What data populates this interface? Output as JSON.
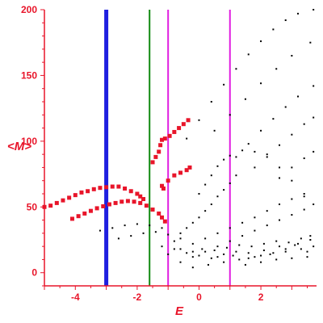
{
  "colors": {
    "axis": "#e8152a",
    "black_points": "#000000",
    "red_points": "#e8152a",
    "line_blue": "#1f1fe0",
    "line_green": "#128a12",
    "line_magenta": "#e01ee0"
  },
  "chart_data": {
    "type": "scatter",
    "xlabel": "E",
    "ylabel": "<M>",
    "xlim": [
      -5.0,
      3.8
    ],
    "ylim": [
      -10,
      200
    ],
    "xticks": [
      -4,
      -2,
      0,
      2
    ],
    "xtick_labels": [
      "-4",
      "-2",
      "0",
      "2"
    ],
    "yticks": [
      0,
      50,
      100,
      150,
      200
    ],
    "ytick_labels": [
      "0",
      "50",
      "100",
      "150",
      "200"
    ],
    "grid": false,
    "vertical_lines": [
      {
        "x": -3.0,
        "color": "#1f1fe0",
        "width": "thick"
      },
      {
        "x": -1.6,
        "color": "#128a12",
        "width": "normal"
      },
      {
        "x": -1.0,
        "color": "#e01ee0",
        "width": "normal"
      },
      {
        "x": 1.0,
        "color": "#e01ee0",
        "width": "normal"
      }
    ],
    "series": [
      {
        "color": "#e8152a",
        "marker": "large",
        "points": [
          [
            -5.0,
            50
          ],
          [
            -4.8,
            51
          ],
          [
            -4.6,
            53
          ],
          [
            -4.4,
            55
          ],
          [
            -4.2,
            57
          ],
          [
            -4.0,
            59
          ],
          [
            -3.8,
            61
          ],
          [
            -3.6,
            62
          ],
          [
            -3.4,
            63.5
          ],
          [
            -3.2,
            64.5
          ],
          [
            -3.0,
            65
          ],
          [
            -2.8,
            65.5
          ],
          [
            -2.6,
            65.5
          ],
          [
            -2.4,
            64
          ],
          [
            -2.2,
            62
          ],
          [
            -2.0,
            60
          ],
          [
            -1.9,
            58
          ],
          [
            -1.8,
            56
          ]
        ]
      },
      {
        "color": "#e8152a",
        "marker": "large",
        "points": [
          [
            -4.1,
            41
          ],
          [
            -3.9,
            43
          ],
          [
            -3.7,
            45
          ],
          [
            -3.5,
            47
          ],
          [
            -3.3,
            49
          ],
          [
            -3.1,
            50.5
          ],
          [
            -2.9,
            52
          ],
          [
            -2.7,
            53
          ],
          [
            -2.5,
            54
          ],
          [
            -2.3,
            54.5
          ],
          [
            -2.1,
            54
          ],
          [
            -1.9,
            53
          ],
          [
            -1.7,
            51
          ],
          [
            -1.5,
            48
          ],
          [
            -1.3,
            45
          ],
          [
            -1.2,
            42
          ],
          [
            -1.1,
            39
          ]
        ]
      },
      {
        "color": "#e8152a",
        "marker": "large",
        "points": [
          [
            -1.5,
            84
          ],
          [
            -1.4,
            88
          ],
          [
            -1.3,
            92
          ],
          [
            -1.25,
            97
          ],
          [
            -1.2,
            101
          ],
          [
            -1.1,
            102
          ],
          [
            -0.95,
            104
          ],
          [
            -0.8,
            107
          ],
          [
            -0.65,
            110
          ],
          [
            -0.5,
            113
          ],
          [
            -0.35,
            116
          ],
          [
            -1.2,
            66
          ],
          [
            -1.15,
            64
          ],
          [
            -1.0,
            70
          ],
          [
            -0.8,
            74
          ],
          [
            -0.6,
            76
          ],
          [
            -0.4,
            78
          ],
          [
            -0.3,
            80
          ]
        ]
      },
      {
        "color": "#000000",
        "marker": "small",
        "points": [
          [
            -0.4,
            102
          ],
          [
            0.0,
            116
          ],
          [
            0.4,
            130
          ],
          [
            0.8,
            143
          ],
          [
            1.2,
            155
          ],
          [
            1.6,
            166
          ],
          [
            2.0,
            176
          ],
          [
            2.4,
            185
          ],
          [
            2.8,
            192
          ],
          [
            3.2,
            197
          ],
          [
            3.7,
            200
          ],
          [
            0.5,
            108
          ],
          [
            1.0,
            120
          ],
          [
            1.5,
            132
          ],
          [
            2.0,
            144
          ],
          [
            2.5,
            155
          ],
          [
            3.0,
            165
          ],
          [
            3.6,
            175
          ],
          [
            1.2,
            88
          ],
          [
            1.6,
            98
          ],
          [
            2.0,
            108
          ],
          [
            2.4,
            117
          ],
          [
            2.8,
            126
          ],
          [
            3.2,
            134
          ],
          [
            3.7,
            142
          ],
          [
            1.8,
            80
          ],
          [
            2.2,
            88
          ],
          [
            2.6,
            97
          ],
          [
            3.0,
            105
          ],
          [
            3.4,
            113
          ],
          [
            3.7,
            118
          ],
          [
            2.6,
            72
          ],
          [
            3.0,
            80
          ],
          [
            3.4,
            87
          ],
          [
            3.7,
            92
          ],
          [
            -3.2,
            32
          ],
          [
            -2.8,
            34
          ],
          [
            -2.4,
            36
          ],
          [
            -2.0,
            37
          ],
          [
            -1.6,
            36
          ],
          [
            -1.2,
            34
          ],
          [
            -2.6,
            26
          ],
          [
            -2.2,
            28
          ],
          [
            -1.8,
            30
          ],
          [
            -1.4,
            31
          ],
          [
            -1.0,
            29
          ],
          [
            -0.6,
            26
          ],
          [
            -1.2,
            20
          ],
          [
            -0.8,
            24
          ],
          [
            -0.6,
            30
          ],
          [
            -0.4,
            34
          ],
          [
            -0.2,
            38
          ],
          [
            0.0,
            42
          ],
          [
            0.2,
            47
          ],
          [
            0.4,
            52
          ],
          [
            0.6,
            58
          ],
          [
            0.8,
            63
          ],
          [
            1.0,
            68
          ],
          [
            1.2,
            74
          ],
          [
            0.0,
            60
          ],
          [
            0.2,
            67
          ],
          [
            0.4,
            74
          ],
          [
            0.6,
            81
          ],
          [
            0.8,
            86
          ],
          [
            1.0,
            89
          ],
          [
            1.4,
            93
          ],
          [
            1.8,
            92
          ],
          [
            2.2,
            90
          ],
          [
            2.6,
            80
          ],
          [
            3.0,
            70
          ],
          [
            3.4,
            58
          ],
          [
            -1.0,
            14
          ],
          [
            -0.6,
            18
          ],
          [
            -0.2,
            22
          ],
          [
            0.2,
            26
          ],
          [
            0.6,
            30
          ],
          [
            1.0,
            34
          ],
          [
            1.4,
            38
          ],
          [
            1.8,
            42
          ],
          [
            2.2,
            47
          ],
          [
            2.6,
            52
          ],
          [
            3.0,
            56
          ],
          [
            3.4,
            60
          ],
          [
            -0.6,
            8
          ],
          [
            -0.2,
            12
          ],
          [
            0.2,
            16
          ],
          [
            0.6,
            20
          ],
          [
            1.0,
            24
          ],
          [
            1.4,
            28
          ],
          [
            1.8,
            32
          ],
          [
            2.2,
            36
          ],
          [
            2.6,
            40
          ],
          [
            3.0,
            44
          ],
          [
            3.4,
            48
          ],
          [
            3.7,
            52
          ],
          [
            -0.2,
            4
          ],
          [
            0.3,
            6
          ],
          [
            0.8,
            8
          ],
          [
            1.3,
            10
          ],
          [
            1.8,
            12
          ],
          [
            2.3,
            14
          ],
          [
            2.8,
            16
          ],
          [
            3.3,
            18
          ],
          [
            3.7,
            20
          ],
          [
            -0.8,
            18
          ],
          [
            -0.4,
            15
          ],
          [
            0.0,
            13
          ],
          [
            0.4,
            11
          ],
          [
            0.8,
            14
          ],
          [
            1.2,
            16
          ],
          [
            1.6,
            15
          ],
          [
            2.0,
            13
          ],
          [
            2.4,
            15
          ],
          [
            2.8,
            18
          ],
          [
            3.2,
            22
          ],
          [
            3.6,
            25
          ],
          [
            -0.2,
            16
          ],
          [
            0.1,
            18
          ],
          [
            0.5,
            17
          ],
          [
            0.9,
            19
          ],
          [
            1.3,
            21
          ],
          [
            1.7,
            20
          ],
          [
            2.1,
            22
          ],
          [
            2.5,
            24
          ],
          [
            2.9,
            23
          ],
          [
            3.3,
            26
          ],
          [
            3.6,
            28
          ],
          [
            0.6,
            12
          ],
          [
            1.1,
            13
          ],
          [
            1.6,
            11
          ],
          [
            2.1,
            17
          ],
          [
            2.6,
            20
          ],
          [
            3.1,
            21
          ],
          [
            3.5,
            16
          ],
          [
            1.5,
            6
          ],
          [
            2.0,
            8
          ],
          [
            2.5,
            10
          ],
          [
            3.0,
            11
          ],
          [
            3.5,
            12
          ]
        ]
      }
    ]
  }
}
